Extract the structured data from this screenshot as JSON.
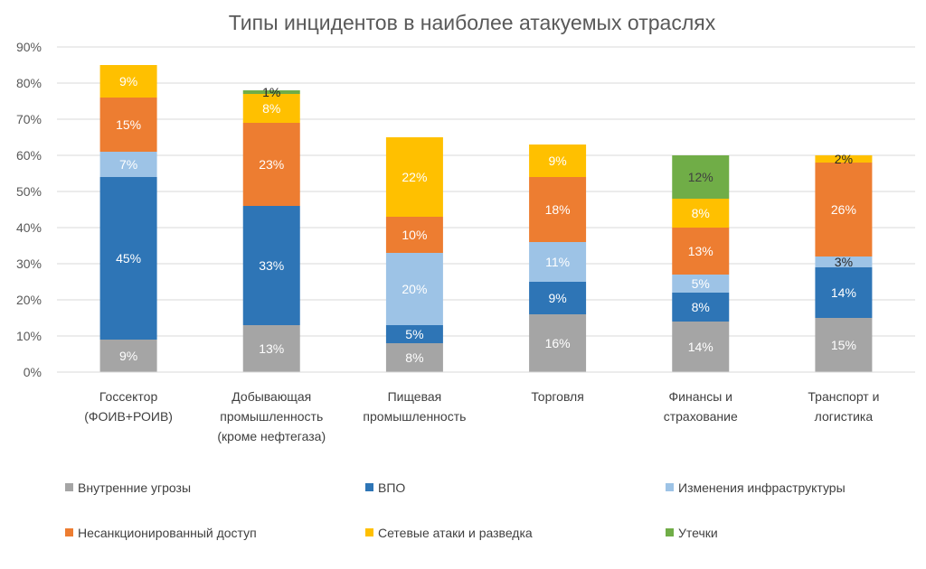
{
  "chart_data": {
    "type": "bar",
    "stacked": true,
    "title": "Типы инцидентов в наиболее атакуемых отраслях",
    "xlabel": "",
    "ylabel": "",
    "ylim": [
      0,
      90
    ],
    "y_ticks": [
      "0%",
      "10%",
      "20%",
      "30%",
      "40%",
      "50%",
      "60%",
      "70%",
      "80%",
      "90%"
    ],
    "grid": true,
    "legend_position": "bottom",
    "categories": [
      [
        "Госсектор",
        "(ФОИВ+РОИВ)"
      ],
      [
        "Добывающая",
        "промышленность",
        "(кроме нефтегаза)"
      ],
      [
        "Пищевая",
        "промышленность"
      ],
      [
        "Торговля"
      ],
      [
        "Финансы и",
        "страхование"
      ],
      [
        "Транспорт и",
        "логистика"
      ]
    ],
    "series": [
      {
        "name": "Внутренние угрозы",
        "color": "#a5a5a5",
        "label_color": "#ffffff",
        "values": [
          9,
          13,
          8,
          16,
          14,
          15
        ]
      },
      {
        "name": "ВПО",
        "color": "#2e75b6",
        "label_color": "#ffffff",
        "values": [
          45,
          33,
          5,
          9,
          8,
          14
        ]
      },
      {
        "name": "Изменения инфраструктуры",
        "color": "#9dc3e6",
        "label_color": "#ffffff",
        "values": [
          7,
          0,
          20,
          11,
          5,
          3
        ]
      },
      {
        "name": "Несанкционированный доступ",
        "color": "#ed7d31",
        "label_color": "#ffffff",
        "values": [
          15,
          23,
          10,
          18,
          13,
          26
        ]
      },
      {
        "name": "Сетевые атаки и разведка",
        "color": "#ffc000",
        "label_color": "#ffffff",
        "values": [
          9,
          8,
          22,
          9,
          8,
          2
        ]
      },
      {
        "name": "Утечки",
        "color": "#70ad47",
        "label_color": "#404040",
        "values": [
          0,
          1,
          0,
          0,
          12,
          0
        ]
      }
    ],
    "legend_rows": [
      [
        "Внутренние угрозы",
        "ВПО",
        "Изменения инфраструктуры"
      ],
      [
        "Несанкционированный доступ",
        "Сетевые атаки и разведка",
        "Утечки"
      ]
    ]
  }
}
